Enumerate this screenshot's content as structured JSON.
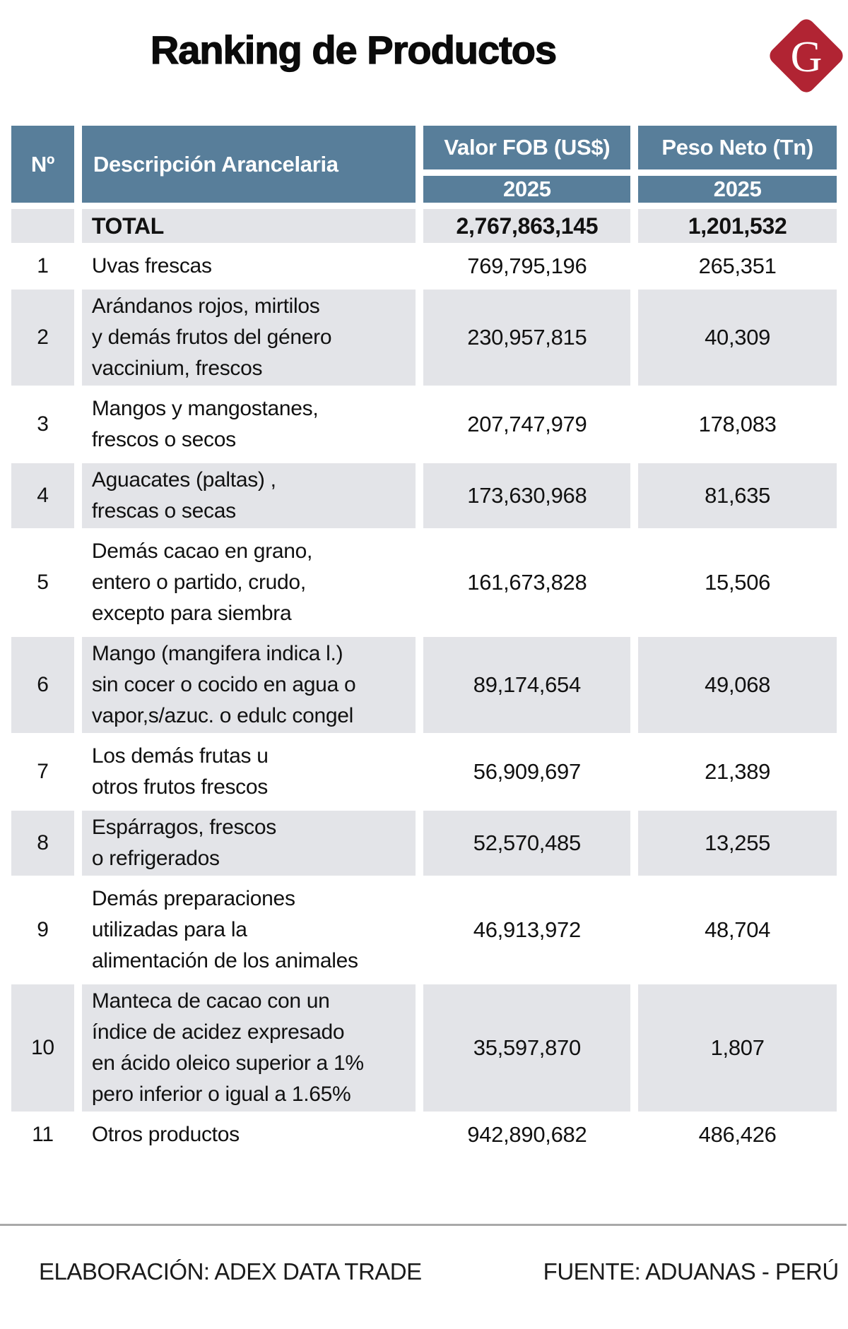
{
  "page": {
    "title": "Ranking de Productos"
  },
  "logo": {
    "letter": "G"
  },
  "colors": {
    "header_blue": "#587e9a",
    "row_gray": "#e3e4e8",
    "logo_red": "#b12433",
    "divider_gray": "#a9a9a9"
  },
  "table": {
    "headers": {
      "num": "Nº",
      "description": "Descripción Arancelaria",
      "fob": "Valor FOB (US$)",
      "peso": "Peso Neto (Tn)",
      "fob_year": "2025",
      "peso_year": "2025"
    },
    "total": {
      "label": "TOTAL",
      "fob": "2,767,863,145",
      "peso": "1,201,532"
    },
    "rows": [
      {
        "num": "1",
        "desc": "Uvas frescas",
        "fob": "769,795,196",
        "peso": "265,351"
      },
      {
        "num": "2",
        "desc": "Arándanos rojos, mirtilos\ny demás frutos del género\nvaccinium, frescos",
        "fob": "230,957,815",
        "peso": "40,309"
      },
      {
        "num": "3",
        "desc": "Mangos y mangostanes,\nfrescos o secos",
        "fob": "207,747,979",
        "peso": "178,083"
      },
      {
        "num": "4",
        "desc": "Aguacates (paltas) ,\nfrescas o secas",
        "fob": "173,630,968",
        "peso": "81,635"
      },
      {
        "num": "5",
        "desc": "Demás cacao en grano,\nentero o partido, crudo,\nexcepto para siembra",
        "fob": "161,673,828",
        "peso": "15,506"
      },
      {
        "num": "6",
        "desc": "Mango (mangifera indica l.)\nsin cocer o cocido en agua o\nvapor,s/azuc. o edulc congel",
        "fob": "89,174,654",
        "peso": "49,068"
      },
      {
        "num": "7",
        "desc": "Los demás frutas u\notros frutos frescos",
        "fob": "56,909,697",
        "peso": "21,389"
      },
      {
        "num": "8",
        "desc": "Espárragos, frescos\no refrigerados",
        "fob": "52,570,485",
        "peso": "13,255"
      },
      {
        "num": "9",
        "desc": "Demás preparaciones\nutilizadas para la\nalimentación de los animales",
        "fob": "46,913,972",
        "peso": "48,704"
      },
      {
        "num": "10",
        "desc": "Manteca de cacao con un\níndice de acidez expresado\nen ácido oleico superior a 1%\npero inferior o igual a 1.65%",
        "fob": "35,597,870",
        "peso": "1,807"
      },
      {
        "num": "11",
        "desc": "Otros productos",
        "fob": "942,890,682",
        "peso": "486,426"
      }
    ]
  },
  "footer": {
    "elaboracion": "ELABORACIÓN: ADEX DATA TRADE",
    "fuente": "FUENTE: ADUANAS - PERÚ"
  }
}
